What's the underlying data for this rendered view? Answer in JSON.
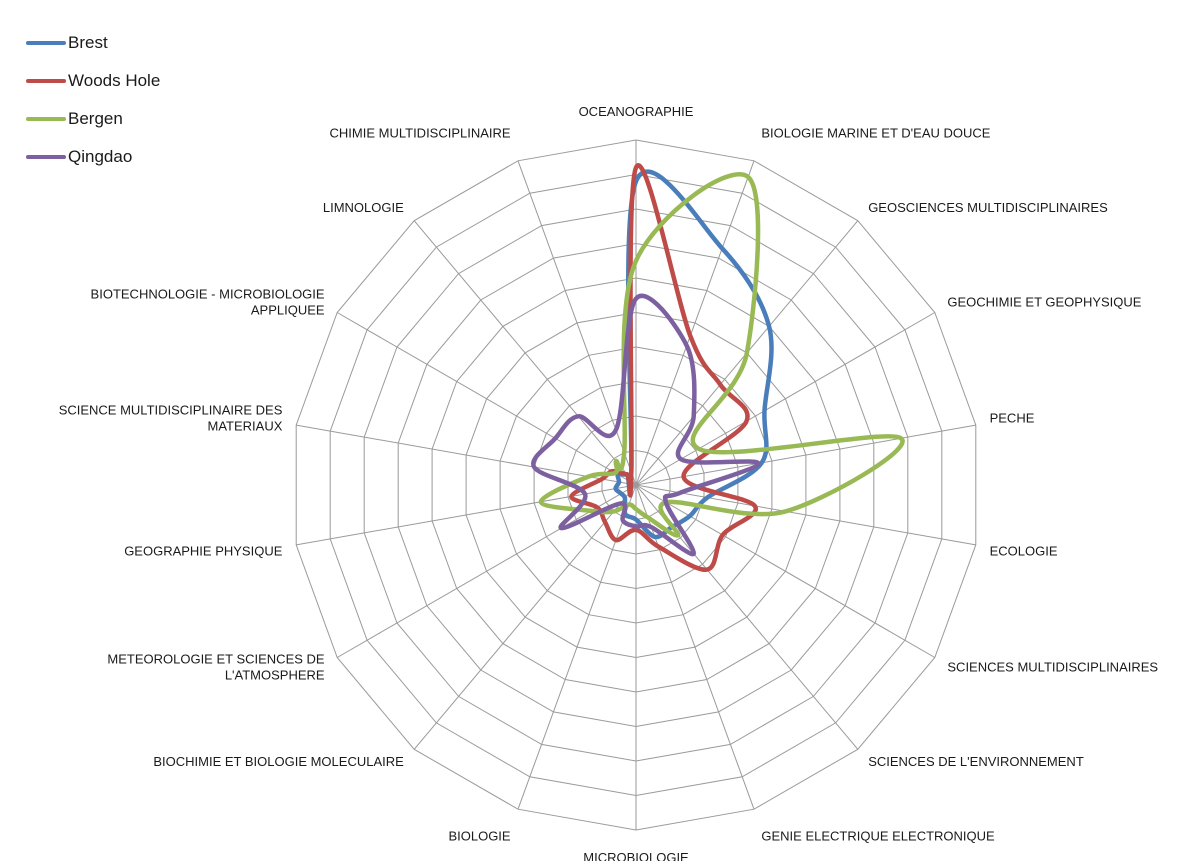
{
  "chart_data": {
    "type": "radar",
    "axes": [
      "OCEANOGRAPHIE",
      "BIOLOGIE MARINE ET D'EAU DOUCE",
      "GEOSCIENCES MULTIDISCIPLINAIRES",
      "GEOCHIMIE ET GEOPHYSIQUE",
      "PECHE",
      "ECOLOGIE",
      "SCIENCES MULTIDISCIPLINAIRES",
      "SCIENCES DE L'ENVIRONNEMENT",
      "GENIE ELECTRIQUE ELECTRONIQUE",
      "MICROBIOLOGIE",
      "BIOLOGIE",
      "BIOCHIMIE ET BIOLOGIE MOLECULAIRE",
      "METEOROLOGIE ET SCIENCES DE L'ATMOSPHERE",
      "GEOGRAPHIE PHYSIQUE",
      "SCIENCE MULTIDISCIPLINAIRE DES MATERIAUX",
      "BIOTECHNOLOGIE - MICROBIOLOGIE APPLIQUEE",
      "LIMNOLOGIE",
      "CHIMIE MULTIDISCIPLINAIRE"
    ],
    "rlim": [
      0,
      10
    ],
    "grid_rings": 10,
    "grid": true,
    "legend_position": "top-left",
    "series": [
      {
        "name": "Brest",
        "color": "#4a7ebb",
        "values": [
          8.8,
          7.3,
          6.0,
          4.3,
          3.7,
          2.1,
          1.8,
          1.6,
          1.6,
          1.0,
          0.9,
          0.5,
          0.5,
          0.6,
          0.5,
          0.6,
          0.4,
          0.4
        ]
      },
      {
        "name": "Woods Hole",
        "color": "#be4b48",
        "values": [
          9.2,
          4.6,
          3.8,
          3.7,
          1.4,
          3.5,
          2.9,
          3.2,
          1.9,
          1.3,
          1.7,
          1.4,
          1.3,
          1.9,
          1.0,
          0.8,
          0.4,
          0.4
        ]
      },
      {
        "name": "Bergen",
        "color": "#98b954",
        "values": [
          6.5,
          9.5,
          5.0,
          2.1,
          7.8,
          4.4,
          1.0,
          1.9,
          1.0,
          0.7,
          0.6,
          1.0,
          1.5,
          2.8,
          1.4,
          0.7,
          0.9,
          1.0
        ]
      },
      {
        "name": "Qingdao",
        "color": "#7d60a0",
        "values": [
          5.4,
          4.3,
          2.6,
          1.5,
          3.6,
          1.3,
          1.0,
          2.6,
          1.3,
          1.2,
          1.1,
          0.7,
          2.5,
          1.5,
          3.0,
          2.7,
          2.6,
          1.7
        ]
      }
    ]
  }
}
